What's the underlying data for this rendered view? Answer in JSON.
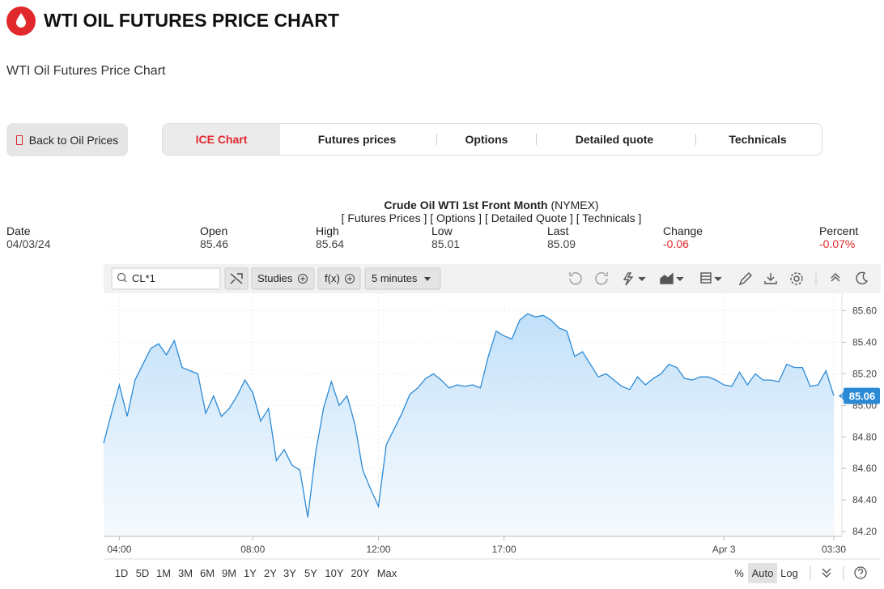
{
  "header": {
    "title": "WTI OIL FUTURES PRICE CHART",
    "subtitle": "WTI Oil Futures Price Chart"
  },
  "back_button": "Back to Oil Prices",
  "tabs": [
    "ICE Chart",
    "Futures prices",
    "Options",
    "Detailed quote",
    "Technicals"
  ],
  "chart_header": {
    "title": "Crude Oil WTI 1st Front Month",
    "exchange": "(NYMEX)",
    "links": "[ Futures Prices ] [ Options ] [ Detailed Quote ] [ Technicals ]"
  },
  "quote": [
    {
      "label": "Date",
      "value": "04/03/24"
    },
    {
      "label": "Open",
      "value": "85.46"
    },
    {
      "label": "High",
      "value": "85.64"
    },
    {
      "label": "Low",
      "value": "85.01"
    },
    {
      "label": "Last",
      "value": "85.09"
    },
    {
      "label": "Change",
      "value": "-0.06"
    },
    {
      "label": "Percent",
      "value": "-0.07%"
    }
  ],
  "toolbar": {
    "symbol": "CL*1",
    "studies": "Studies",
    "functions": "f(x)",
    "interval": "5 minutes"
  },
  "ranges": [
    "1D",
    "5D",
    "1M",
    "3M",
    "6M",
    "9M",
    "1Y",
    "2Y",
    "3Y",
    "5Y",
    "10Y",
    "20Y",
    "Max"
  ],
  "scale_options": [
    "%",
    "Auto",
    "Log"
  ],
  "chart_data": {
    "type": "line",
    "categories": [
      null,
      null,
      "04:00",
      null,
      null,
      null,
      null,
      null,
      null,
      null,
      null,
      null,
      null,
      null,
      null,
      null,
      null,
      null,
      null,
      "08:00",
      null,
      null,
      null,
      null,
      null,
      null,
      null,
      null,
      null,
      null,
      null,
      null,
      null,
      null,
      null,
      "12:00",
      null,
      null,
      null,
      null,
      null,
      null,
      null,
      null,
      null,
      null,
      null,
      null,
      null,
      null,
      null,
      "17:00",
      null,
      null,
      null,
      null,
      null,
      null,
      null,
      null,
      null,
      null,
      null,
      null,
      null,
      null,
      null,
      null,
      null,
      null,
      null,
      null,
      null,
      null,
      null,
      null,
      null,
      null,
      null,
      "Apr 3",
      null,
      null,
      null,
      null,
      null,
      null,
      null,
      null,
      null,
      null,
      null,
      null,
      null,
      "03:30"
    ],
    "values": [
      84.76,
      84.95,
      85.13,
      84.93,
      85.16,
      85.26,
      85.36,
      85.39,
      85.32,
      85.41,
      85.24,
      85.22,
      85.2,
      84.95,
      85.06,
      84.93,
      84.98,
      85.06,
      85.16,
      85.08,
      84.9,
      84.98,
      84.65,
      84.72,
      84.62,
      84.59,
      84.29,
      84.7,
      84.98,
      85.15,
      85.0,
      85.06,
      84.88,
      84.59,
      84.47,
      84.36,
      84.75,
      84.85,
      84.95,
      85.07,
      85.11,
      85.17,
      85.2,
      85.16,
      85.11,
      85.13,
      85.12,
      85.13,
      85.11,
      85.31,
      85.47,
      85.44,
      85.42,
      85.54,
      85.58,
      85.56,
      85.57,
      85.54,
      85.49,
      85.47,
      85.31,
      85.34,
      85.26,
      85.18,
      85.2,
      85.16,
      85.12,
      85.1,
      85.18,
      85.13,
      85.17,
      85.2,
      85.26,
      85.24,
      85.17,
      85.16,
      85.18,
      85.18,
      85.16,
      85.13,
      85.12,
      85.21,
      85.13,
      85.2,
      85.16,
      85.16,
      85.15,
      85.26,
      85.24,
      85.24,
      85.12,
      85.13,
      85.22,
      85.06
    ],
    "color": "#2b8ad6",
    "ylim": [
      84.17,
      85.71
    ],
    "yticks": [
      {
        "value": 84.2,
        "label": "84.20"
      },
      {
        "value": 84.4,
        "label": "84.40"
      },
      {
        "value": 84.6,
        "label": "84.60"
      },
      {
        "value": 84.8,
        "label": "84.80"
      },
      {
        "value": 85.0,
        "label": "85.00"
      },
      {
        "value": 85.2,
        "label": "85.20"
      },
      {
        "value": 85.4,
        "label": "85.40"
      },
      {
        "value": 85.6,
        "label": "85.60"
      }
    ],
    "last_price": 85.06,
    "grid": true
  }
}
